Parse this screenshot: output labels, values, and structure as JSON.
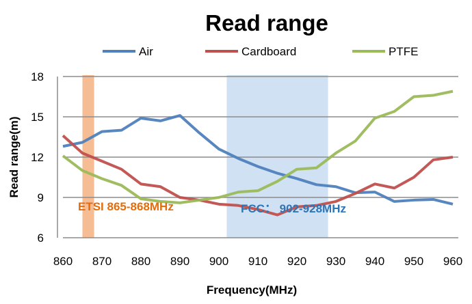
{
  "chart_data": {
    "type": "line",
    "title": "Read range",
    "xlabel": "Frequency(MHz)",
    "ylabel": "Read range(m)",
    "xlim": [
      860,
      960
    ],
    "ylim": [
      6,
      18
    ],
    "xticks": [
      860,
      870,
      880,
      890,
      900,
      910,
      920,
      930,
      940,
      950,
      960
    ],
    "yticks": [
      6,
      9,
      12,
      15,
      18
    ],
    "grid": "horizontal",
    "legend": "top",
    "x": [
      860,
      865,
      870,
      875,
      880,
      885,
      890,
      895,
      900,
      905,
      910,
      915,
      920,
      925,
      930,
      935,
      940,
      945,
      950,
      955,
      960
    ],
    "series": [
      {
        "name": "Air",
        "color": "#4f81bd",
        "values": [
          12.8,
          13.1,
          13.9,
          14.0,
          14.9,
          14.7,
          15.1,
          13.8,
          12.6,
          11.9,
          11.3,
          10.8,
          10.4,
          9.95,
          9.8,
          9.35,
          9.4,
          8.7,
          8.8,
          8.85,
          8.5
        ]
      },
      {
        "name": "Cardboard",
        "color": "#c0504d",
        "values": [
          13.6,
          12.3,
          11.7,
          11.1,
          10.0,
          9.8,
          9.0,
          8.8,
          8.5,
          8.4,
          8.1,
          7.7,
          8.3,
          8.4,
          8.7,
          9.3,
          10.0,
          9.7,
          10.5,
          11.8,
          12.0
        ]
      },
      {
        "name": "PTFE",
        "color": "#9bbb59",
        "values": [
          12.1,
          11.0,
          10.4,
          9.9,
          8.9,
          8.7,
          8.6,
          8.8,
          9.0,
          9.4,
          9.5,
          10.2,
          11.1,
          11.2,
          12.3,
          13.2,
          14.9,
          15.4,
          16.5,
          16.6,
          16.9
        ]
      }
    ],
    "bands": [
      {
        "label": "ETSI 865-868MHz",
        "from": 865,
        "to": 868,
        "color": "#f4b183",
        "label_color": "#e46c0a"
      },
      {
        "label": "FCC： 902-928MHz",
        "from": 902,
        "to": 928,
        "color": "#c5d9f1",
        "label_color": "#2e75b6"
      }
    ]
  }
}
